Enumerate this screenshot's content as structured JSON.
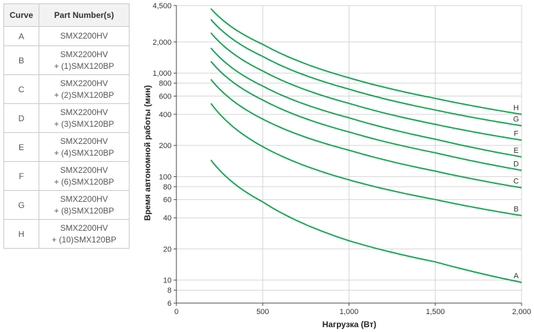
{
  "table": {
    "headers": [
      "Curve",
      "Part Number(s)"
    ],
    "rows": [
      {
        "curve": "A",
        "lines": [
          "SMX2200HV"
        ]
      },
      {
        "curve": "B",
        "lines": [
          "SMX2200HV",
          "+ (1)SMX120BP"
        ]
      },
      {
        "curve": "C",
        "lines": [
          "SMX2200HV",
          "+ (2)SMX120BP"
        ]
      },
      {
        "curve": "D",
        "lines": [
          "SMX2200HV",
          "+ (3)SMX120BP"
        ]
      },
      {
        "curve": "E",
        "lines": [
          "SMX2200HV",
          "+ (4)SMX120BP"
        ]
      },
      {
        "curve": "F",
        "lines": [
          "SMX2200HV",
          "+ (6)SMX120BP"
        ]
      },
      {
        "curve": "G",
        "lines": [
          "SMX2200HV",
          "+ (8)SMX120BP"
        ]
      },
      {
        "curve": "H",
        "lines": [
          "SMX2200HV",
          "+ (10)SMX120BP"
        ]
      }
    ]
  },
  "chart_data": {
    "type": "line",
    "xlabel": "Нагрузка (Вт)",
    "ylabel": "Время автономной работы (мин)",
    "xlim": [
      0,
      2000
    ],
    "ylim": [
      6,
      4500
    ],
    "yscale": "log",
    "grid": true,
    "line_color": "#1aa655",
    "x_ticks": [
      {
        "value": 0,
        "label": "0"
      },
      {
        "value": 500,
        "label": "500"
      },
      {
        "value": 1000,
        "label": "1,000"
      },
      {
        "value": 1500,
        "label": "1,500"
      },
      {
        "value": 2000,
        "label": "2,000"
      }
    ],
    "y_ticks": [
      {
        "value": 6,
        "label": "6"
      },
      {
        "value": 8,
        "label": "8"
      },
      {
        "value": 10,
        "label": "10"
      },
      {
        "value": 20,
        "label": "20"
      },
      {
        "value": 40,
        "label": "40"
      },
      {
        "value": 60,
        "label": "60"
      },
      {
        "value": 80,
        "label": "80"
      },
      {
        "value": 100,
        "label": "100"
      },
      {
        "value": 200,
        "label": "200"
      },
      {
        "value": 400,
        "label": "400"
      },
      {
        "value": 600,
        "label": "600"
      },
      {
        "value": 800,
        "label": "800"
      },
      {
        "value": 1000,
        "label": "1,000"
      },
      {
        "value": 2000,
        "label": "2,000"
      },
      {
        "value": 4500,
        "label": "4,500"
      }
    ],
    "x": [
      200,
      500,
      1000,
      1500,
      2000
    ],
    "series": [
      {
        "name": "A",
        "values": [
          145,
          57,
          24,
          15,
          9.5
        ]
      },
      {
        "name": "B",
        "values": [
          510,
          195,
          93,
          60,
          42
        ]
      },
      {
        "name": "C",
        "values": [
          870,
          360,
          180,
          113,
          78
        ]
      },
      {
        "name": "D",
        "values": [
          1300,
          550,
          270,
          170,
          115
        ]
      },
      {
        "name": "E",
        "values": [
          1750,
          750,
          370,
          230,
          155
        ]
      },
      {
        "name": "F",
        "values": [
          2450,
          1050,
          510,
          320,
          225
        ]
      },
      {
        "name": "G",
        "values": [
          3300,
          1450,
          700,
          440,
          310
        ]
      },
      {
        "name": "H",
        "values": [
          4200,
          1900,
          900,
          570,
          400
        ]
      }
    ]
  }
}
